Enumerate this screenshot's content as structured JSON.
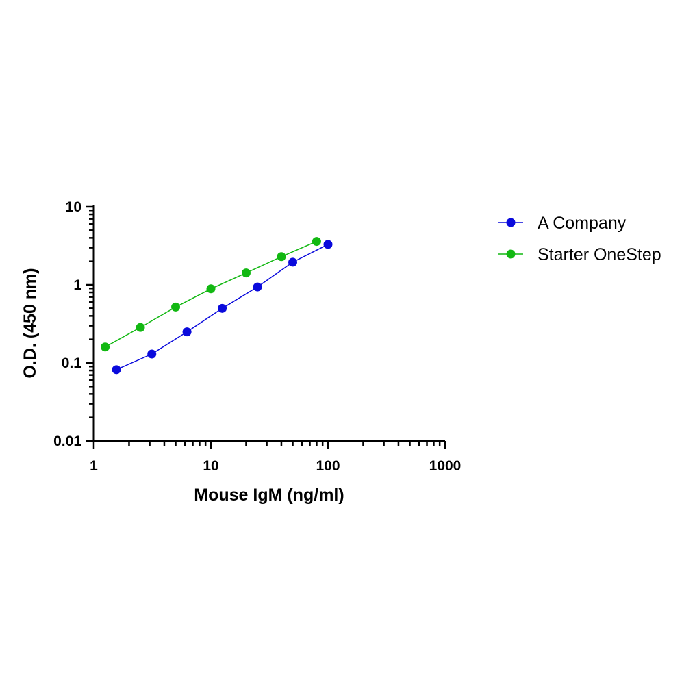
{
  "chart_data": {
    "type": "scatter",
    "xlabel": "Mouse IgM (ng/ml)",
    "ylabel": "O.D. (450 nm)",
    "x_scale": "log",
    "y_scale": "log",
    "xlim": [
      1,
      1000
    ],
    "ylim": [
      0.01,
      10
    ],
    "x_ticks": [
      "1",
      "10",
      "100",
      "1000"
    ],
    "y_ticks": [
      "0.01",
      "0.1",
      "1",
      "10"
    ],
    "grid": false,
    "legend_position": "right",
    "series": [
      {
        "name": "A Company",
        "color": "#0a0adc",
        "x": [
          1.56,
          3.13,
          6.25,
          12.5,
          25,
          50,
          100
        ],
        "y": [
          0.082,
          0.13,
          0.25,
          0.5,
          0.94,
          1.95,
          3.3
        ]
      },
      {
        "name": "Starter OneStep",
        "color": "#12b812",
        "x": [
          1.25,
          2.5,
          5,
          10,
          20,
          40,
          80
        ],
        "y": [
          0.16,
          0.285,
          0.52,
          0.89,
          1.42,
          2.3,
          3.6
        ]
      }
    ]
  }
}
